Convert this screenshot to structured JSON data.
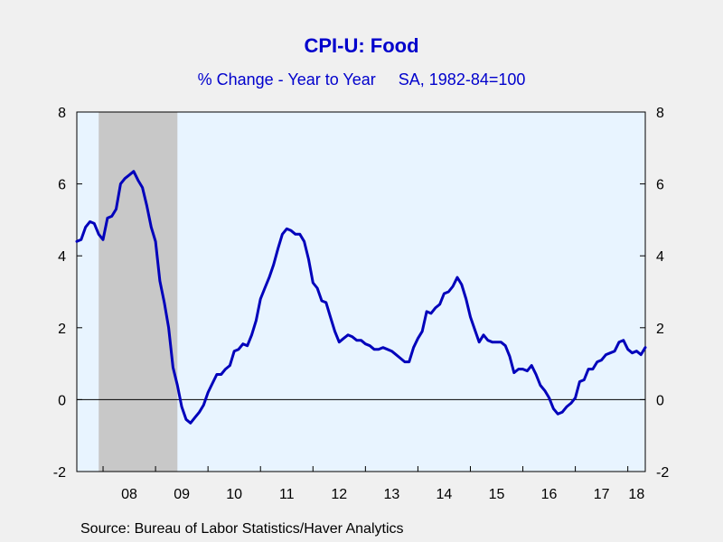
{
  "title": "CPI-U: Food",
  "subtitle": "% Change - Year to Year     SA, 1982-84=100",
  "source": "Source:  Bureau of Labor Statistics/Haver Analytics",
  "colors": {
    "line": "#0000bb",
    "plot_bg": "#e8f4ff",
    "recession": "#c8c8c8",
    "title": "#0000cc"
  },
  "chart_data": {
    "type": "line",
    "title": "CPI-U: Food",
    "subtitle": "% Change - Year to Year     SA, 1982-84=100",
    "x_tick_labels": [
      "08",
      "09",
      "10",
      "11",
      "12",
      "13",
      "14",
      "15",
      "16",
      "17",
      "18"
    ],
    "y_ticks": [
      -2,
      0,
      2,
      4,
      6,
      8
    ],
    "ylim": [
      -2,
      8
    ],
    "xlim": [
      2007.5,
      2018.333
    ],
    "y_axes": "left-and-right",
    "zero_line": true,
    "recession_shading": [
      {
        "start": 2007.917,
        "end": 2009.417
      }
    ],
    "series": [
      {
        "x": [
          2007.5,
          2007.583,
          2007.667,
          2007.75,
          2007.833,
          2007.917,
          2008.0,
          2008.083,
          2008.167,
          2008.25,
          2008.333,
          2008.417,
          2008.5,
          2008.583,
          2008.667,
          2008.75,
          2008.833,
          2008.917,
          2009.0,
          2009.083,
          2009.167,
          2009.25,
          2009.333,
          2009.417,
          2009.5,
          2009.583,
          2009.667,
          2009.75,
          2009.833,
          2009.917,
          2010.0,
          2010.083,
          2010.167,
          2010.25,
          2010.333,
          2010.417,
          2010.5,
          2010.583,
          2010.667,
          2010.75,
          2010.833,
          2010.917,
          2011.0,
          2011.083,
          2011.167,
          2011.25,
          2011.333,
          2011.417,
          2011.5,
          2011.583,
          2011.667,
          2011.75,
          2011.833,
          2011.917,
          2012.0,
          2012.083,
          2012.167,
          2012.25,
          2012.333,
          2012.417,
          2012.5,
          2012.583,
          2012.667,
          2012.75,
          2012.833,
          2012.917,
          2013.0,
          2013.083,
          2013.167,
          2013.25,
          2013.333,
          2013.417,
          2013.5,
          2013.583,
          2013.667,
          2013.75,
          2013.833,
          2013.917,
          2014.0,
          2014.083,
          2014.167,
          2014.25,
          2014.333,
          2014.417,
          2014.5,
          2014.583,
          2014.667,
          2014.75,
          2014.833,
          2014.917,
          2015.0,
          2015.083,
          2015.167,
          2015.25,
          2015.333,
          2015.417,
          2015.5,
          2015.583,
          2015.667,
          2015.75,
          2015.833,
          2015.917,
          2016.0,
          2016.083,
          2016.167,
          2016.25,
          2016.333,
          2016.417,
          2016.5,
          2016.583,
          2016.667,
          2016.75,
          2016.833,
          2016.917,
          2017.0,
          2017.083,
          2017.167,
          2017.25,
          2017.333,
          2017.417,
          2017.5,
          2017.583,
          2017.667,
          2017.75,
          2017.833,
          2017.917,
          2018.0,
          2018.083,
          2018.167,
          2018.25,
          2018.333
        ],
        "values": [
          4.4,
          4.45,
          4.8,
          4.95,
          4.9,
          4.6,
          4.45,
          5.05,
          5.1,
          5.3,
          6.0,
          6.15,
          6.25,
          6.35,
          6.1,
          5.9,
          5.4,
          4.8,
          4.4,
          3.3,
          2.7,
          2.0,
          0.9,
          0.4,
          -0.2,
          -0.55,
          -0.65,
          -0.5,
          -0.35,
          -0.15,
          0.2,
          0.45,
          0.7,
          0.7,
          0.85,
          0.95,
          1.35,
          1.4,
          1.55,
          1.5,
          1.8,
          2.2,
          2.8,
          3.1,
          3.4,
          3.75,
          4.2,
          4.6,
          4.75,
          4.7,
          4.6,
          4.6,
          4.4,
          3.9,
          3.25,
          3.1,
          2.75,
          2.7,
          2.3,
          1.9,
          1.6,
          1.7,
          1.8,
          1.75,
          1.65,
          1.65,
          1.55,
          1.5,
          1.4,
          1.4,
          1.45,
          1.4,
          1.35,
          1.25,
          1.15,
          1.05,
          1.05,
          1.45,
          1.7,
          1.9,
          2.45,
          2.4,
          2.55,
          2.65,
          2.95,
          3.0,
          3.15,
          3.4,
          3.2,
          2.8,
          2.3,
          1.95,
          1.6,
          1.8,
          1.65,
          1.6,
          1.6,
          1.6,
          1.5,
          1.2,
          0.75,
          0.85,
          0.85,
          0.8,
          0.95,
          0.7,
          0.4,
          0.25,
          0.05,
          -0.25,
          -0.4,
          -0.35,
          -0.2,
          -0.1,
          0.05,
          0.5,
          0.55,
          0.85,
          0.85,
          1.05,
          1.1,
          1.25,
          1.3,
          1.35,
          1.6,
          1.65,
          1.4,
          1.3,
          1.35,
          1.25,
          1.45
        ]
      }
    ]
  }
}
